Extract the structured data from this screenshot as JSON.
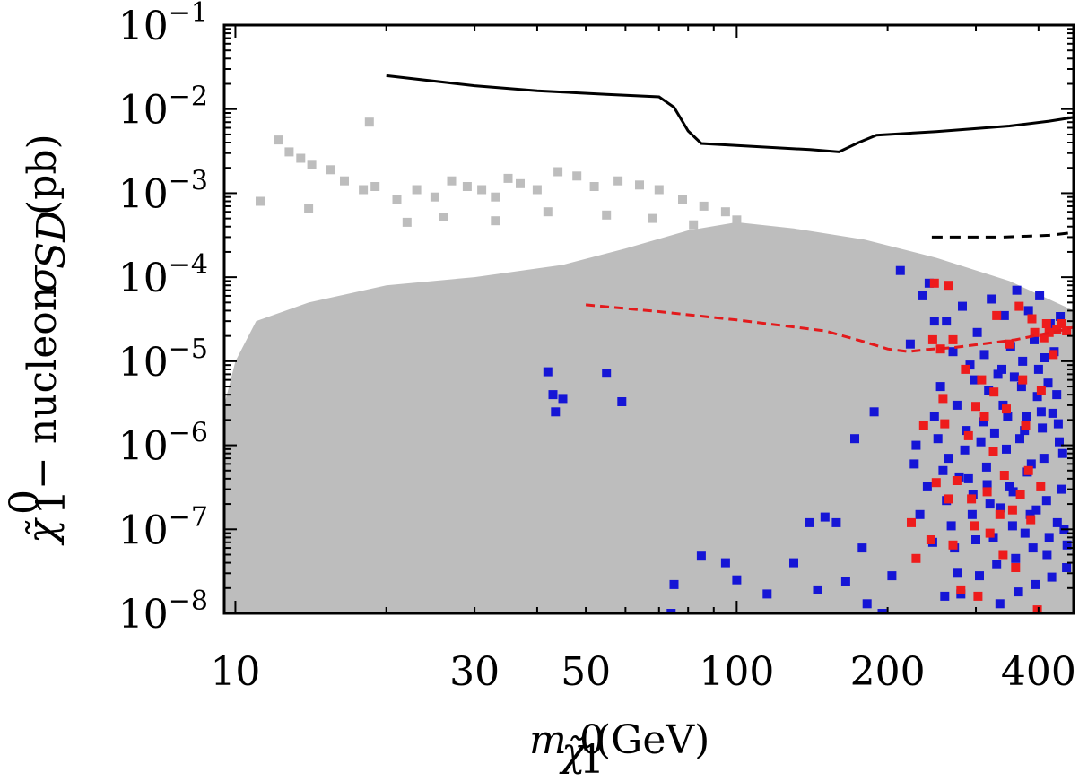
{
  "chart_data": {
    "type": "scatter",
    "title": "",
    "xlabel": "m_{χ̃₁⁰}(GeV)",
    "ylabel": "χ̃₁⁰ − nucleon σ_SD (pb)",
    "xscale": "log",
    "yscale": "log",
    "xlim": [
      9.5,
      470
    ],
    "ylim": [
      1e-08,
      0.1
    ],
    "x_ticks": [
      {
        "value": 10,
        "label": "10"
      },
      {
        "value": 30,
        "label": "30"
      },
      {
        "value": 50,
        "label": "50"
      },
      {
        "value": 100,
        "label": "100"
      },
      {
        "value": 200,
        "label": "200"
      },
      {
        "value": 400,
        "label": "400"
      }
    ],
    "y_ticks": [
      {
        "value": 0.1,
        "exp": -1
      },
      {
        "value": 0.01,
        "exp": -2
      },
      {
        "value": 0.001,
        "exp": -3
      },
      {
        "value": 0.0001,
        "exp": -4
      },
      {
        "value": 1e-05,
        "exp": -5
      },
      {
        "value": 1e-06,
        "exp": -6
      },
      {
        "value": 1e-07,
        "exp": -7
      },
      {
        "value": 1e-08,
        "exp": -8
      }
    ],
    "colors": {
      "gray": "#bdbdbd",
      "blue": "#1515d6",
      "red": "#ee1c1c",
      "limit": "#000000",
      "projected": "#000000",
      "red_limit": "#e31a1c"
    },
    "series": [
      {
        "name": "all points (gray)",
        "style": "gray-squares",
        "points": [
          [
            12.2,
            0.0043
          ],
          [
            12.8,
            0.0031
          ],
          [
            13.5,
            0.0026
          ],
          [
            14.2,
            0.0022
          ],
          [
            15.5,
            0.0019
          ],
          [
            16.5,
            0.0014
          ],
          [
            18,
            0.0011
          ],
          [
            19,
            0.0012
          ],
          [
            21,
            0.00085
          ],
          [
            23,
            0.0011
          ],
          [
            25,
            0.0009
          ],
          [
            27,
            0.0014
          ],
          [
            29,
            0.0012
          ],
          [
            31,
            0.0011
          ],
          [
            33,
            0.0009
          ],
          [
            35,
            0.0015
          ],
          [
            37,
            0.0013
          ],
          [
            40,
            0.0011
          ],
          [
            44,
            0.0018
          ],
          [
            48,
            0.0016
          ],
          [
            52,
            0.0012
          ],
          [
            58,
            0.0014
          ],
          [
            64,
            0.00125
          ],
          [
            70,
            0.0011
          ],
          [
            78,
            0.00085
          ],
          [
            86,
            0.0007
          ],
          [
            95,
            0.0006
          ],
          [
            18.5,
            0.007
          ],
          [
            11.2,
            0.0008
          ],
          [
            14,
            0.00065
          ],
          [
            22,
            0.00045
          ],
          [
            26,
            0.00052
          ],
          [
            33,
            0.00047
          ],
          [
            42,
            0.0006
          ],
          [
            55,
            0.00055
          ],
          [
            68,
            0.0005
          ],
          [
            82,
            0.00042
          ],
          [
            100,
            0.00048
          ],
          [
            120,
            0.0003
          ],
          [
            140,
            0.00025
          ],
          [
            160,
            0.0002
          ],
          [
            190,
            0.00016
          ]
        ]
      },
      {
        "name": "selected points (blue)",
        "style": "blue-squares",
        "points": [
          [
            42,
            7.5e-06
          ],
          [
            43,
            4e-06
          ],
          [
            45,
            3.6e-06
          ],
          [
            55,
            7.2e-06
          ],
          [
            59,
            3.3e-06
          ],
          [
            43.5,
            2.5e-06
          ],
          [
            74,
            1e-08
          ],
          [
            75,
            2.2e-08
          ],
          [
            85,
            4.8e-08
          ],
          [
            95,
            4e-08
          ],
          [
            100,
            2.5e-08
          ],
          [
            115,
            1.7e-08
          ],
          [
            130,
            4e-08
          ],
          [
            140,
            1.2e-07
          ],
          [
            145,
            1.9e-08
          ],
          [
            150,
            1.4e-07
          ],
          [
            158,
            1.2e-07
          ],
          [
            165,
            2.4e-08
          ],
          [
            172,
            1.2e-06
          ],
          [
            178,
            6e-08
          ],
          [
            182,
            1.3e-08
          ],
          [
            188,
            2.5e-06
          ],
          [
            195,
            1e-08
          ],
          [
            204,
            2.8e-08
          ],
          [
            212,
            0.00012
          ],
          [
            222,
            1.6e-05
          ],
          [
            228,
            1e-06
          ],
          [
            235,
            6e-05
          ],
          [
            242,
            8.5e-05
          ],
          [
            248,
            3e-05
          ],
          [
            252,
            1.2e-06
          ],
          [
            258,
            5e-07
          ],
          [
            262,
            2.2e-07
          ],
          [
            268,
            1.1e-07
          ],
          [
            272,
            6e-08
          ],
          [
            276,
            3e-08
          ],
          [
            280,
            1.7e-08
          ],
          [
            285,
            8.8e-07
          ],
          [
            290,
            4e-07
          ],
          [
            295,
            1.5e-07
          ],
          [
            300,
            7.5e-08
          ],
          [
            305,
            2.8e-08
          ],
          [
            310,
            1.9e-06
          ],
          [
            315,
            5.5e-07
          ],
          [
            320,
            2e-07
          ],
          [
            325,
            8e-08
          ],
          [
            330,
            3.8e-08
          ],
          [
            335,
            1.3e-08
          ],
          [
            340,
            3e-06
          ],
          [
            345,
            9e-07
          ],
          [
            350,
            3.2e-07
          ],
          [
            355,
            1.1e-07
          ],
          [
            360,
            4.5e-08
          ],
          [
            365,
            1.8e-08
          ],
          [
            370,
            5e-06
          ],
          [
            375,
            1.5e-06
          ],
          [
            380,
            4.8e-07
          ],
          [
            385,
            1.5e-07
          ],
          [
            390,
            6e-08
          ],
          [
            395,
            2.2e-08
          ],
          [
            400,
            8e-06
          ],
          [
            405,
            2.5e-06
          ],
          [
            410,
            7e-07
          ],
          [
            415,
            2.2e-07
          ],
          [
            420,
            8e-08
          ],
          [
            425,
            2.7e-08
          ],
          [
            430,
            1.3e-05
          ],
          [
            435,
            4e-06
          ],
          [
            440,
            1.1e-06
          ],
          [
            445,
            3e-07
          ],
          [
            450,
            1e-07
          ],
          [
            455,
            3.5e-08
          ],
          [
            262,
            3e-05
          ],
          [
            282,
            4.5e-05
          ],
          [
            302,
            2.2e-05
          ],
          [
            322,
            5.5e-05
          ],
          [
            342,
            3.5e-05
          ],
          [
            362,
            7e-05
          ],
          [
            382,
            4e-05
          ],
          [
            402,
            6e-05
          ],
          [
            422,
            2.8e-05
          ],
          [
            442,
            3.4e-05
          ],
          [
            270,
            1.3e-05
          ],
          [
            292,
            9e-06
          ],
          [
            312,
            1.2e-05
          ],
          [
            332,
            7e-06
          ],
          [
            352,
            1.5e-05
          ],
          [
            372,
            1e-05
          ],
          [
            392,
            1.8e-05
          ],
          [
            412,
            1.1e-05
          ],
          [
            255,
            5e-06
          ],
          [
            275,
            3e-06
          ],
          [
            298,
            6e-06
          ],
          [
            318,
            4.5e-06
          ],
          [
            338,
            8e-06
          ],
          [
            358,
            6.5e-06
          ],
          [
            378,
            2.2e-06
          ],
          [
            398,
            3.8e-06
          ],
          [
            418,
            5.5e-06
          ],
          [
            438,
            1.8e-06
          ],
          [
            265,
            7e-07
          ],
          [
            287,
            1.5e-06
          ],
          [
            307,
            1.1e-06
          ],
          [
            327,
            1.4e-06
          ],
          [
            347,
            2.2e-06
          ],
          [
            367,
            1.2e-06
          ],
          [
            387,
            6e-07
          ],
          [
            407,
            1.6e-06
          ],
          [
            427,
            2.4e-06
          ],
          [
            447,
            8e-07
          ],
          [
            240,
            3.2e-07
          ],
          [
            246,
            7e-08
          ],
          [
            260,
            1.6e-08
          ],
          [
            278,
            4.2e-07
          ],
          [
            296,
            2.6e-07
          ],
          [
            316,
            3.4e-07
          ],
          [
            336,
            1.8e-07
          ],
          [
            356,
            2.8e-07
          ],
          [
            376,
            9e-08
          ],
          [
            396,
            1.7e-07
          ],
          [
            416,
            5e-08
          ],
          [
            436,
            1.2e-07
          ],
          [
            456,
            6.5e-08
          ],
          [
            248,
            2.2e-06
          ],
          [
            232,
            1.5e-07
          ],
          [
            226,
            6e-07
          ]
        ]
      },
      {
        "name": "selected points (red)",
        "style": "red-squares",
        "points": [
          [
            223,
            1.2e-07
          ],
          [
            228,
            4.5e-08
          ],
          [
            236,
            1.7e-06
          ],
          [
            244,
            7.5e-08
          ],
          [
            248,
            8.5e-05
          ],
          [
            250,
            3.6e-07
          ],
          [
            255,
            1.4e-05
          ],
          [
            260,
            1.8e-06
          ],
          [
            265,
            2.3e-07
          ],
          [
            270,
            6.5e-08
          ],
          [
            275,
            3.8e-07
          ],
          [
            280,
            1.9e-08
          ],
          [
            286,
            8e-06
          ],
          [
            290,
            1.3e-06
          ],
          [
            294,
            2.3e-07
          ],
          [
            298,
            1.1e-07
          ],
          [
            303,
            1.6e-08
          ],
          [
            308,
            6e-06
          ],
          [
            312,
            2.2e-06
          ],
          [
            316,
            2.8e-07
          ],
          [
            320,
            9e-08
          ],
          [
            326,
            4.3e-06
          ],
          [
            330,
            3.5e-05
          ],
          [
            335,
            1.5e-07
          ],
          [
            340,
            5e-08
          ],
          [
            345,
            2.7e-06
          ],
          [
            350,
            1.6e-05
          ],
          [
            355,
            1.7e-07
          ],
          [
            360,
            3.5e-08
          ],
          [
            366,
            4.5e-05
          ],
          [
            372,
            6e-06
          ],
          [
            377,
            1.7e-06
          ],
          [
            382,
            5e-07
          ],
          [
            388,
            3.2e-05
          ],
          [
            393,
            2.2e-05
          ],
          [
            398,
            1.1e-08
          ],
          [
            405,
            4.5e-06
          ],
          [
            410,
            1.9e-05
          ],
          [
            415,
            2.8e-05
          ],
          [
            420,
            2.2e-05
          ],
          [
            428,
            1.2e-05
          ],
          [
            435,
            2.4e-05
          ],
          [
            445,
            2.8e-05
          ],
          [
            455,
            2.3e-05
          ],
          [
            264,
            8e-05
          ],
          [
            270,
            1.8e-05
          ],
          [
            300,
            2.9e-06
          ],
          [
            325,
            8.5e-07
          ],
          [
            342,
            4.4e-07
          ],
          [
            368,
            2.6e-07
          ],
          [
            386,
            1.3e-07
          ],
          [
            404,
            3.2e-07
          ],
          [
            246,
            1.8e-05
          ],
          [
            258,
            3.6e-06
          ]
        ]
      },
      {
        "name": "current limit (solid)",
        "style": "black-solid",
        "points": [
          [
            20,
            0.025
          ],
          [
            30,
            0.019
          ],
          [
            40,
            0.0165
          ],
          [
            55,
            0.015
          ],
          [
            70,
            0.014
          ],
          [
            75,
            0.0105
          ],
          [
            80,
            0.0055
          ],
          [
            85,
            0.0039
          ],
          [
            100,
            0.0037
          ],
          [
            140,
            0.0033
          ],
          [
            160,
            0.0031
          ],
          [
            175,
            0.004
          ],
          [
            190,
            0.0049
          ],
          [
            250,
            0.0054
          ],
          [
            350,
            0.0063
          ],
          [
            420,
            0.0072
          ],
          [
            470,
            0.008
          ]
        ]
      },
      {
        "name": "projected limit (black dashed)",
        "style": "black-dashed",
        "points": [
          [
            245,
            0.0003
          ],
          [
            340,
            0.0003
          ],
          [
            420,
            0.000315
          ],
          [
            470,
            0.00034
          ]
        ]
      },
      {
        "name": "projected limit (red dashed)",
        "style": "red-dashed",
        "points": [
          [
            50,
            4.7e-05
          ],
          [
            70,
            3.9e-05
          ],
          [
            100,
            3.1e-05
          ],
          [
            150,
            2.3e-05
          ],
          [
            180,
            1.7e-05
          ],
          [
            200,
            1.4e-05
          ],
          [
            220,
            1.3e-05
          ],
          [
            240,
            1.38e-05
          ],
          [
            270,
            1.45e-05
          ],
          [
            320,
            1.65e-05
          ],
          [
            360,
            1.8e-05
          ],
          [
            400,
            2.05e-05
          ],
          [
            440,
            2.3e-05
          ],
          [
            470,
            2.55e-05
          ]
        ]
      }
    ]
  }
}
